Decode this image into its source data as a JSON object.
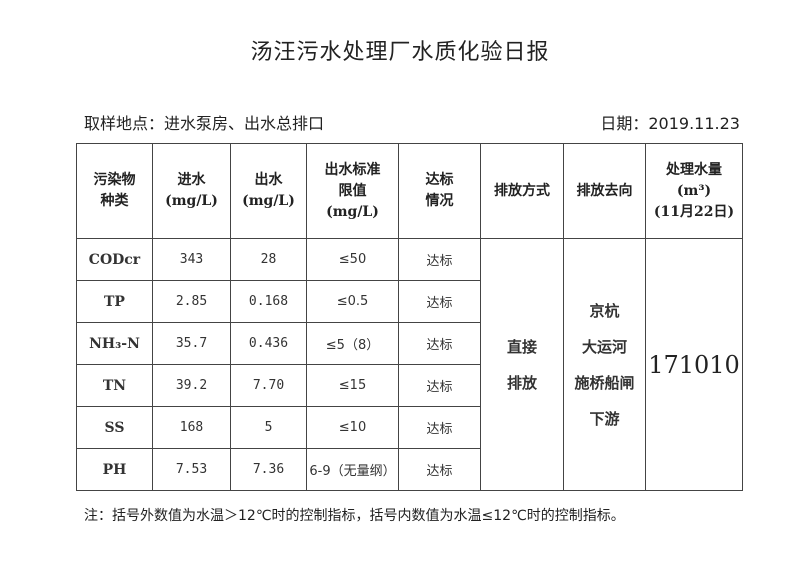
{
  "title": "汤汪污水处理厂水质化验日报",
  "location": "取样地点：进水泵房、出水总排口",
  "date": "日期：2019.11.23",
  "headers": [
    "污染物\n种类",
    "进水\n(mg/L)",
    "出水\n(mg/L)",
    "出水标准\n限值\n(mg/L)",
    "达标\n情况",
    "排放方式",
    "排放去向",
    "处理水量\n(m³)\n(11月22日)"
  ],
  "rows": [
    {
      "name": "CODcr",
      "in": "343",
      "out": "28",
      "limit": "≤50",
      "status": "达标"
    },
    {
      "name": "TP",
      "in": "2.85",
      "out": "0.168",
      "limit": "≤0.5",
      "status": "达标"
    },
    {
      "name": "NH₃-N",
      "in": "35.7",
      "out": "0.436",
      "limit": "≤5（8）",
      "status": "达标"
    },
    {
      "name": "TN",
      "in": "39.2",
      "out": "7.70",
      "limit": "≤15",
      "status": "达标"
    },
    {
      "name": "SS",
      "in": "168",
      "out": "5",
      "limit": "≤10",
      "status": "达标"
    },
    {
      "name": "PH",
      "in": "7.53",
      "out": "7.36",
      "limit": "6-9（无量纲）",
      "status": "达标"
    }
  ],
  "discharge_method": "直接\n排放",
  "discharge_destination": "京杭\n大运河\n施桥船闸\n下游",
  "treated_volume": "171010",
  "note": "注：括号外数值为水温＞12℃时的控制指标，括号内数值为水温≤12℃时的控制指标。"
}
